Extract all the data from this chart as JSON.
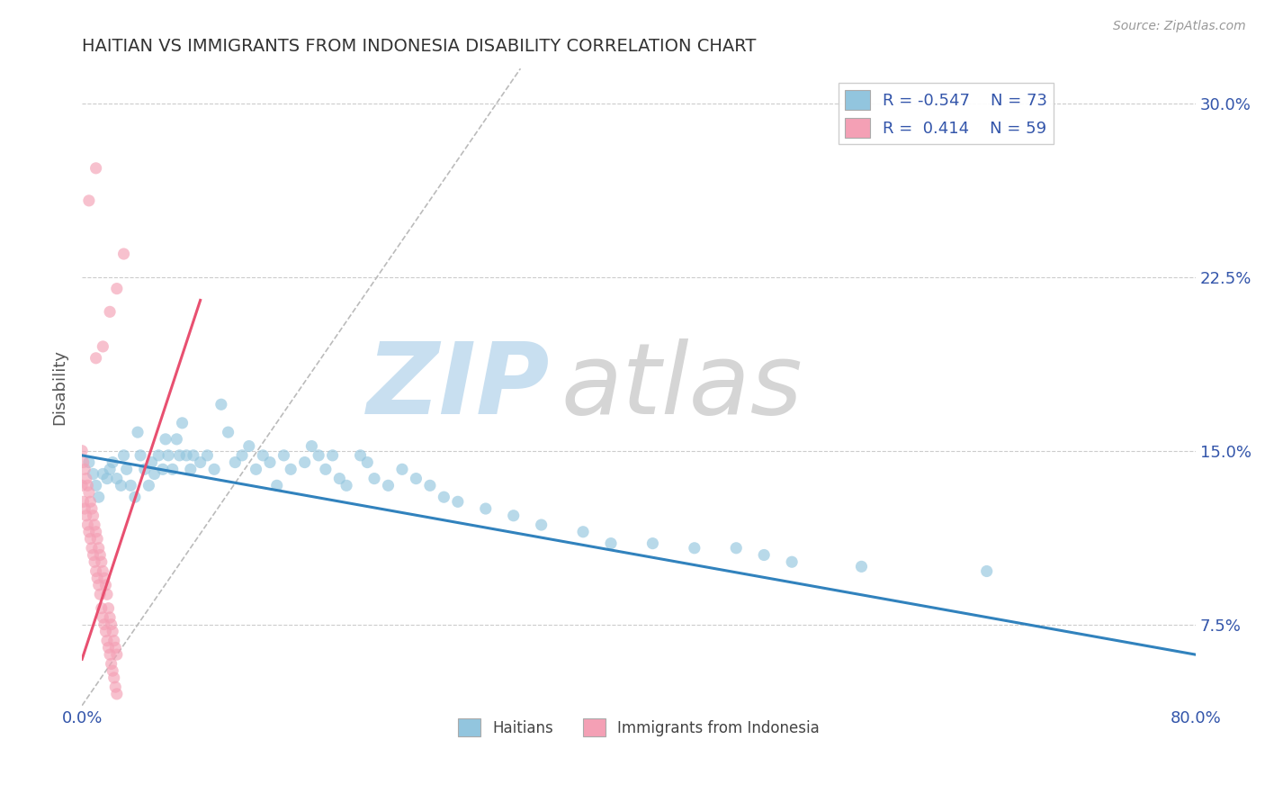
{
  "title": "HAITIAN VS IMMIGRANTS FROM INDONESIA DISABILITY CORRELATION CHART",
  "source": "Source: ZipAtlas.com",
  "ylabel": "Disability",
  "xlim": [
    0.0,
    0.8
  ],
  "ylim": [
    0.04,
    0.315
  ],
  "xtick_vals": [
    0.0,
    0.1,
    0.2,
    0.3,
    0.4,
    0.5,
    0.6,
    0.7,
    0.8
  ],
  "xticklabels": [
    "0.0%",
    "",
    "",
    "",
    "",
    "",
    "",
    "",
    "80.0%"
  ],
  "ytick_vals": [
    0.075,
    0.15,
    0.225,
    0.3
  ],
  "yticklabels": [
    "7.5%",
    "15.0%",
    "22.5%",
    "30.0%"
  ],
  "blue_color": "#92c5de",
  "pink_color": "#f4a0b5",
  "blue_line_color": "#3182bd",
  "pink_line_color": "#e85070",
  "title_color": "#333333",
  "axis_label_color": "#3355aa",
  "haitians_x": [
    0.005,
    0.008,
    0.01,
    0.012,
    0.015,
    0.018,
    0.02,
    0.022,
    0.025,
    0.028,
    0.03,
    0.032,
    0.035,
    0.038,
    0.04,
    0.042,
    0.045,
    0.048,
    0.05,
    0.052,
    0.055,
    0.058,
    0.06,
    0.062,
    0.065,
    0.068,
    0.07,
    0.072,
    0.075,
    0.078,
    0.08,
    0.085,
    0.09,
    0.095,
    0.1,
    0.105,
    0.11,
    0.115,
    0.12,
    0.125,
    0.13,
    0.135,
    0.14,
    0.145,
    0.15,
    0.16,
    0.165,
    0.17,
    0.175,
    0.18,
    0.185,
    0.19,
    0.2,
    0.205,
    0.21,
    0.22,
    0.23,
    0.24,
    0.25,
    0.26,
    0.27,
    0.29,
    0.31,
    0.33,
    0.36,
    0.38,
    0.41,
    0.44,
    0.47,
    0.49,
    0.51,
    0.56,
    0.65
  ],
  "haitians_y": [
    0.145,
    0.14,
    0.135,
    0.13,
    0.14,
    0.138,
    0.142,
    0.145,
    0.138,
    0.135,
    0.148,
    0.142,
    0.135,
    0.13,
    0.158,
    0.148,
    0.142,
    0.135,
    0.145,
    0.14,
    0.148,
    0.142,
    0.155,
    0.148,
    0.142,
    0.155,
    0.148,
    0.162,
    0.148,
    0.142,
    0.148,
    0.145,
    0.148,
    0.142,
    0.17,
    0.158,
    0.145,
    0.148,
    0.152,
    0.142,
    0.148,
    0.145,
    0.135,
    0.148,
    0.142,
    0.145,
    0.152,
    0.148,
    0.142,
    0.148,
    0.138,
    0.135,
    0.148,
    0.145,
    0.138,
    0.135,
    0.142,
    0.138,
    0.135,
    0.13,
    0.128,
    0.125,
    0.122,
    0.118,
    0.115,
    0.11,
    0.11,
    0.108,
    0.108,
    0.105,
    0.102,
    0.1,
    0.098
  ],
  "indonesia_x": [
    0.0,
    0.001,
    0.002,
    0.003,
    0.004,
    0.005,
    0.006,
    0.007,
    0.008,
    0.009,
    0.01,
    0.011,
    0.012,
    0.013,
    0.014,
    0.015,
    0.016,
    0.017,
    0.018,
    0.019,
    0.02,
    0.021,
    0.022,
    0.023,
    0.024,
    0.025,
    0.0,
    0.001,
    0.002,
    0.003,
    0.004,
    0.005,
    0.006,
    0.007,
    0.008,
    0.009,
    0.01,
    0.011,
    0.012,
    0.013,
    0.014,
    0.015,
    0.016,
    0.017,
    0.018,
    0.019,
    0.02,
    0.021,
    0.022,
    0.023,
    0.024,
    0.025,
    0.01,
    0.015,
    0.02,
    0.025,
    0.03,
    0.005,
    0.01
  ],
  "indonesia_y": [
    0.135,
    0.128,
    0.125,
    0.122,
    0.118,
    0.115,
    0.112,
    0.108,
    0.105,
    0.102,
    0.098,
    0.095,
    0.092,
    0.088,
    0.082,
    0.078,
    0.075,
    0.072,
    0.068,
    0.065,
    0.062,
    0.058,
    0.055,
    0.052,
    0.048,
    0.045,
    0.15,
    0.145,
    0.142,
    0.138,
    0.135,
    0.132,
    0.128,
    0.125,
    0.122,
    0.118,
    0.115,
    0.112,
    0.108,
    0.105,
    0.102,
    0.098,
    0.095,
    0.092,
    0.088,
    0.082,
    0.078,
    0.075,
    0.072,
    0.068,
    0.065,
    0.062,
    0.19,
    0.195,
    0.21,
    0.22,
    0.235,
    0.258,
    0.272
  ],
  "blue_line_x": [
    0.0,
    0.8
  ],
  "blue_line_y": [
    0.148,
    0.062
  ],
  "pink_line_x": [
    0.0,
    0.085
  ],
  "pink_line_y": [
    0.06,
    0.215
  ],
  "diag_line_x": [
    0.0,
    0.315
  ],
  "diag_line_y": [
    0.04,
    0.315
  ],
  "watermark_zip_color": "#c8dff0",
  "watermark_atlas_color": "#d5d5d5"
}
